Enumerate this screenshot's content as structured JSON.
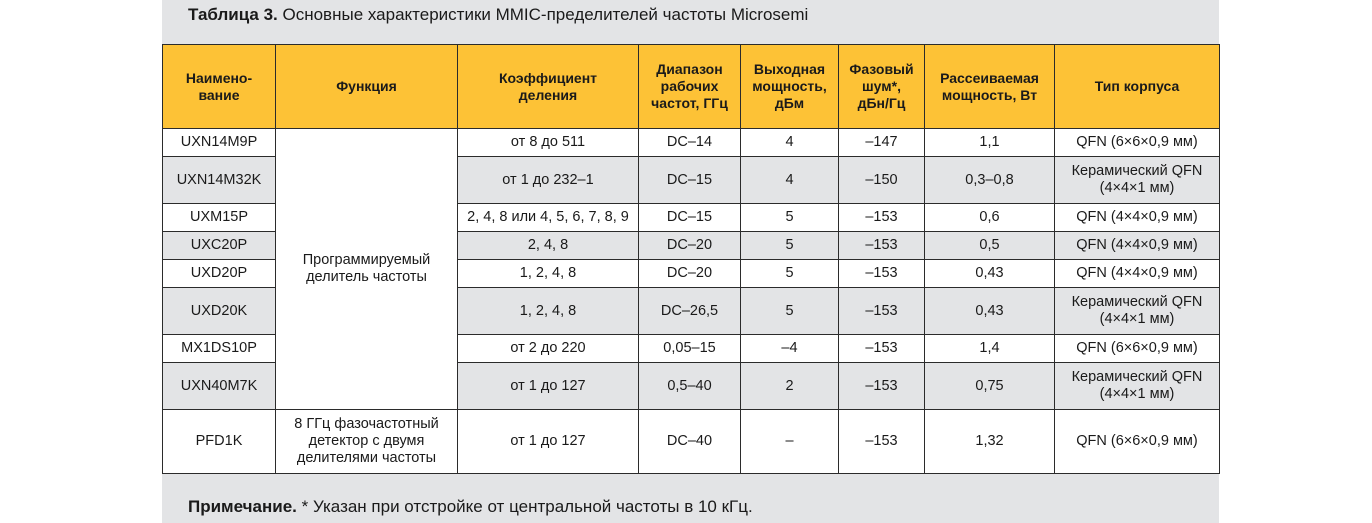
{
  "caption": {
    "lead": "Таблица 3.",
    "text": " Основные характеристики MMIC-пределителей частоты Microsemi"
  },
  "headers": [
    "Наимено-\nвание",
    "Функция",
    "Коэффициент\nделения",
    "Диапазон\nрабочих\nчастот, ГГц",
    "Выходная\nмощность,\nдБм",
    "Фазовый\nшум*,\nдБн/Гц",
    "Рассеиваемая\nмощность, Вт",
    "Тип корпуса"
  ],
  "function_programmable": "Программируемый\nделитель частоты",
  "function_pfd": "8 ГГц фазочастотный\nдетектор с двумя\nделителями частоты",
  "rows": [
    {
      "name": "UXN14M9P",
      "ratio": "от 8 до 511",
      "freq": "DC–14",
      "pout": "4",
      "noise": "–147",
      "pdiss": "1,1",
      "pkg": "QFN (6×6×0,9 мм)"
    },
    {
      "name": "UXN14M32K",
      "ratio": "от 1 до 232–1",
      "freq": "DC–15",
      "pout": "4",
      "noise": "–150",
      "pdiss": "0,3–0,8",
      "pkg": "Керамический QFN\n(4×4×1 мм)"
    },
    {
      "name": "UXM15P",
      "ratio": "2, 4, 8 или 4, 5, 6, 7, 8, 9",
      "freq": "DC–15",
      "pout": "5",
      "noise": "–153",
      "pdiss": "0,6",
      "pkg": "QFN (4×4×0,9 мм)"
    },
    {
      "name": "UXC20P",
      "ratio": "2, 4, 8",
      "freq": "DC–20",
      "pout": "5",
      "noise": "–153",
      "pdiss": "0,5",
      "pkg": "QFN (4×4×0,9 мм)"
    },
    {
      "name": "UXD20P",
      "ratio": "1, 2, 4, 8",
      "freq": "DC–20",
      "pout": "5",
      "noise": "–153",
      "pdiss": "0,43",
      "pkg": "QFN (4×4×0,9 мм)"
    },
    {
      "name": "UXD20K",
      "ratio": "1, 2, 4, 8",
      "freq": "DC–26,5",
      "pout": "5",
      "noise": "–153",
      "pdiss": "0,43",
      "pkg": "Керамический QFN\n(4×4×1 мм)"
    },
    {
      "name": "MX1DS10P",
      "ratio": "от 2 до 220",
      "freq": "0,05–15",
      "pout": "–4",
      "noise": "–153",
      "pdiss": "1,4",
      "pkg": "QFN (6×6×0,9 мм)"
    },
    {
      "name": "UXN40M7K",
      "ratio": "от 1 до 127",
      "freq": "0,5–40",
      "pout": "2",
      "noise": "–153",
      "pdiss": "0,75",
      "pkg": "Керамический QFN\n(4×4×1 мм)"
    },
    {
      "name": "PFD1K",
      "ratio": "от 1 до 127",
      "freq": "DC–40",
      "pout": "–",
      "noise": "–153",
      "pdiss": "1,32",
      "pkg": "QFN (6×6×0,9 мм)"
    }
  ],
  "note": {
    "lead": "Примечание.",
    "text": " * Указан при отстройке от центральной частоты в 10 кГц."
  }
}
